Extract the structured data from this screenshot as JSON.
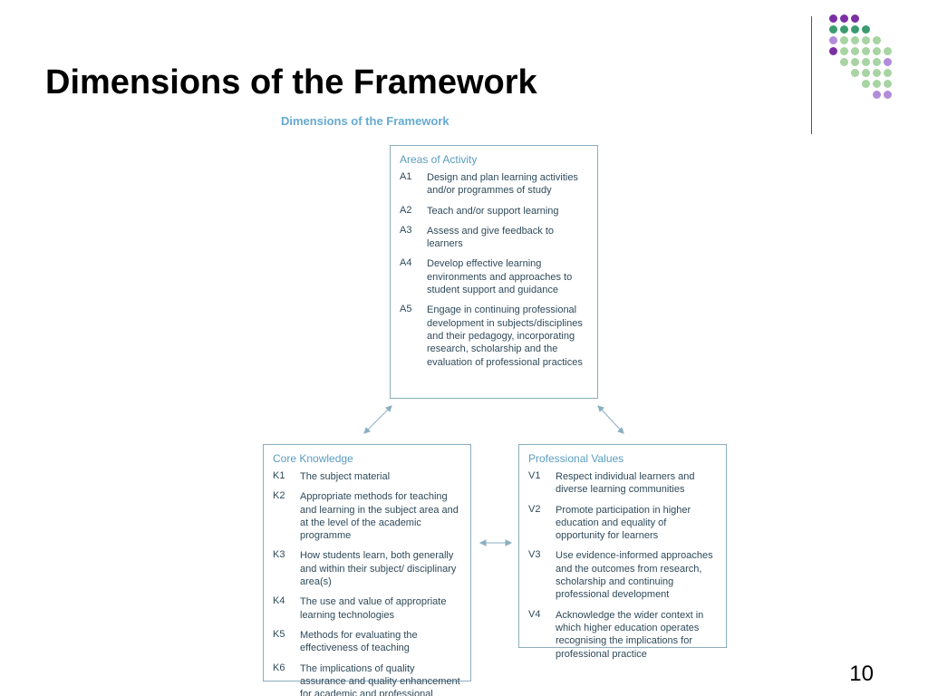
{
  "title": "Dimensions of the Framework",
  "subtitle": "Dimensions of the Framework",
  "page_number": "10",
  "colors": {
    "title": "#000000",
    "subtitle": "#66aad1",
    "box_border": "#8aaec0",
    "box_heading": "#5a9dc0",
    "box_text": "#2e4a5a",
    "arrow": "#8aaec0",
    "dot_purple_dark": "#7b2fa3",
    "dot_purple_light": "#b28cd9",
    "dot_green_dark": "#3a9b6f",
    "dot_green_light": "#a7d4a2",
    "dot_blank": "transparent"
  },
  "boxes": {
    "activity": {
      "title": "Areas of Activity",
      "items": [
        {
          "code": "A1",
          "text": "Design and plan learning activities and/or programmes of study"
        },
        {
          "code": "A2",
          "text": "Teach and/or support learning"
        },
        {
          "code": "A3",
          "text": "Assess and give feedback to learners"
        },
        {
          "code": "A4",
          "text": "Develop effective learning environments and approaches to student support and guidance"
        },
        {
          "code": "A5",
          "text": "Engage in continuing professional development in subjects/disciplines and their pedagogy, incorporating research, scholarship and the evaluation of professional practices"
        }
      ]
    },
    "knowledge": {
      "title": "Core Knowledge",
      "items": [
        {
          "code": "K1",
          "text": "The subject material"
        },
        {
          "code": "K2",
          "text": "Appropriate methods for teaching and learning in the subject area and at the level of the academic programme"
        },
        {
          "code": "K3",
          "text": "How students learn, both generally and within their subject/ disciplinary area(s)"
        },
        {
          "code": "K4",
          "text": "The use and value of appropriate learning technologies"
        },
        {
          "code": "K5",
          "text": "Methods for evaluating the effectiveness of teaching"
        },
        {
          "code": "K6",
          "text": "The implications of quality assurance and quality enhancement for academic and professional practice with a particular focus on teaching"
        }
      ]
    },
    "values": {
      "title": "Professional Values",
      "items": [
        {
          "code": "V1",
          "text": "Respect individual learners and diverse learning communities"
        },
        {
          "code": "V2",
          "text": "Promote participation in higher education and equality of opportunity for learners"
        },
        {
          "code": "V3",
          "text": "Use evidence-informed approaches and the outcomes from research, scholarship and continuing professional development"
        },
        {
          "code": "V4",
          "text": "Acknowledge the wider context in which higher education operates recognising the implications for professional practice"
        }
      ]
    }
  },
  "dot_matrix": [
    [
      "purple_dark",
      "purple_dark",
      "purple_dark",
      "blank",
      "blank",
      "blank"
    ],
    [
      "green_dark",
      "green_dark",
      "green_dark",
      "green_dark",
      "blank",
      "blank"
    ],
    [
      "purple_light",
      "green_light",
      "green_light",
      "green_light",
      "green_light",
      "blank"
    ],
    [
      "purple_dark",
      "green_light",
      "green_light",
      "green_light",
      "green_light",
      "green_light"
    ],
    [
      "blank",
      "green_light",
      "green_light",
      "green_light",
      "green_light",
      "purple_light"
    ],
    [
      "blank",
      "blank",
      "green_light",
      "green_light",
      "green_light",
      "green_light"
    ],
    [
      "blank",
      "blank",
      "blank",
      "green_light",
      "green_light",
      "green_light"
    ],
    [
      "blank",
      "blank",
      "blank",
      "blank",
      "purple_light",
      "purple_light"
    ]
  ]
}
